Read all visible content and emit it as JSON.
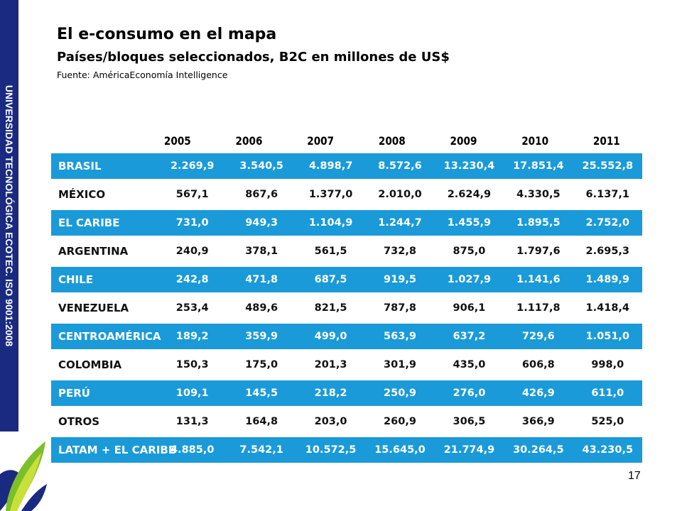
{
  "sidebar": {
    "text": "UNIVERSIDAD TECNOLÓGICA ECOTEC. ISO 9001:2008"
  },
  "header": {
    "title": "El e-consumo en el mapa",
    "subtitle": "Países/bloques seleccionados, B2C en millones de US$",
    "source": "Fuente: AméricaEconomía Intelligence"
  },
  "table": {
    "years": [
      "2005",
      "2006",
      "2007",
      "2008",
      "2009",
      "2010",
      "2011"
    ],
    "rows": [
      {
        "label": "BRASIL",
        "highlight": true,
        "values": [
          "2.269,9",
          "3.540,5",
          "4.898,7",
          "8.572,6",
          "13.230,4",
          "17.851,4",
          "25.552,8"
        ]
      },
      {
        "label": "MÉXICO",
        "highlight": false,
        "values": [
          "567,1",
          "867,6",
          "1.377,0",
          "2.010,0",
          "2.624,9",
          "4.330,5",
          "6.137,1"
        ]
      },
      {
        "label": "EL CARIBE",
        "highlight": true,
        "values": [
          "731,0",
          "949,3",
          "1.104,9",
          "1.244,7",
          "1.455,9",
          "1.895,5",
          "2.752,0"
        ]
      },
      {
        "label": "ARGENTINA",
        "highlight": false,
        "values": [
          "240,9",
          "378,1",
          "561,5",
          "732,8",
          "875,0",
          "1.797,6",
          "2.695,3"
        ]
      },
      {
        "label": "CHILE",
        "highlight": true,
        "values": [
          "242,8",
          "471,8",
          "687,5",
          "919,5",
          "1.027,9",
          "1.141,6",
          "1.489,9"
        ]
      },
      {
        "label": "VENEZUELA",
        "highlight": false,
        "values": [
          "253,4",
          "489,6",
          "821,5",
          "787,8",
          "906,1",
          "1.117,8",
          "1.418,4"
        ]
      },
      {
        "label": "CENTROAMÉRICA",
        "highlight": true,
        "values": [
          "189,2",
          "359,9",
          "499,0",
          "563,9",
          "637,2",
          "729,6",
          "1.051,0"
        ]
      },
      {
        "label": "COLOMBIA",
        "highlight": false,
        "values": [
          "150,3",
          "175,0",
          "201,3",
          "301,9",
          "435,0",
          "606,8",
          "998,0"
        ]
      },
      {
        "label": "PERÚ",
        "highlight": true,
        "values": [
          "109,1",
          "145,5",
          "218,2",
          "250,9",
          "276,0",
          "426,9",
          "611,0"
        ]
      },
      {
        "label": "OTROS",
        "highlight": false,
        "values": [
          "131,3",
          "164,8",
          "203,0",
          "260,9",
          "306,5",
          "366,9",
          "525,0"
        ]
      },
      {
        "label": "LATAM + EL CARIBE",
        "highlight": true,
        "values": [
          "4.885,0",
          "7.542,1",
          "10.572,5",
          "15.645,0",
          "21.774,9",
          "30.264,5",
          "43.230,5"
        ]
      }
    ]
  },
  "footer": {
    "page_number": "17"
  },
  "colors": {
    "sidebar": "#1a2a80",
    "row_highlight": "#1a9ad8"
  },
  "icons": {
    "logo": "green-leaf-logo-icon"
  }
}
